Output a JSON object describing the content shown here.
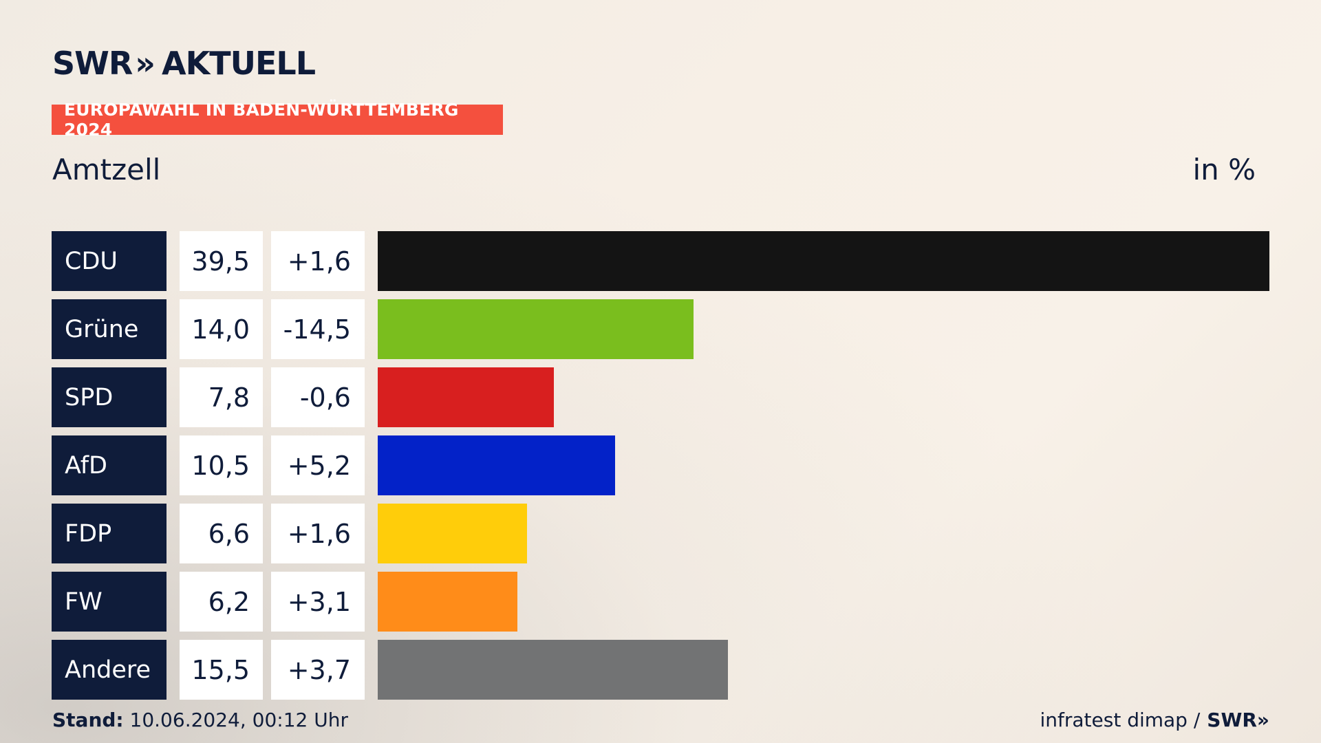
{
  "header": {
    "logo_text": "SWR",
    "logo_chevrons": "»",
    "logo_suffix": "AKTUELL",
    "badge": "EUROPAWAHL IN BADEN-WÜRTTEMBERG 2024",
    "region": "Amtzell",
    "unit": "in %"
  },
  "chart_data": {
    "type": "bar",
    "orientation": "horizontal",
    "categories": [
      "CDU",
      "Grüne",
      "SPD",
      "AfD",
      "FDP",
      "FW",
      "Andere"
    ],
    "values": [
      39.5,
      14.0,
      7.8,
      10.5,
      6.6,
      6.2,
      15.5
    ],
    "value_labels": [
      "39,5",
      "14,0",
      "7,8",
      "10,5",
      "6,6",
      "6,2",
      "15,5"
    ],
    "diff_labels": [
      "+1,6",
      "-14,5",
      "-0,6",
      "+5,2",
      "+1,6",
      "+3,1",
      "+3,7"
    ],
    "colors": [
      "#141414",
      "#7abe1e",
      "#d81f1f",
      "#0322c8",
      "#ffcd0a",
      "#ff8c19",
      "#727374"
    ],
    "xlim": [
      0,
      39.5
    ]
  },
  "footer": {
    "stand_label": "Stand:",
    "stand_value": "10.06.2024, 00:12 Uhr",
    "source": "infratest dimap /",
    "source_logo": "SWR»"
  }
}
